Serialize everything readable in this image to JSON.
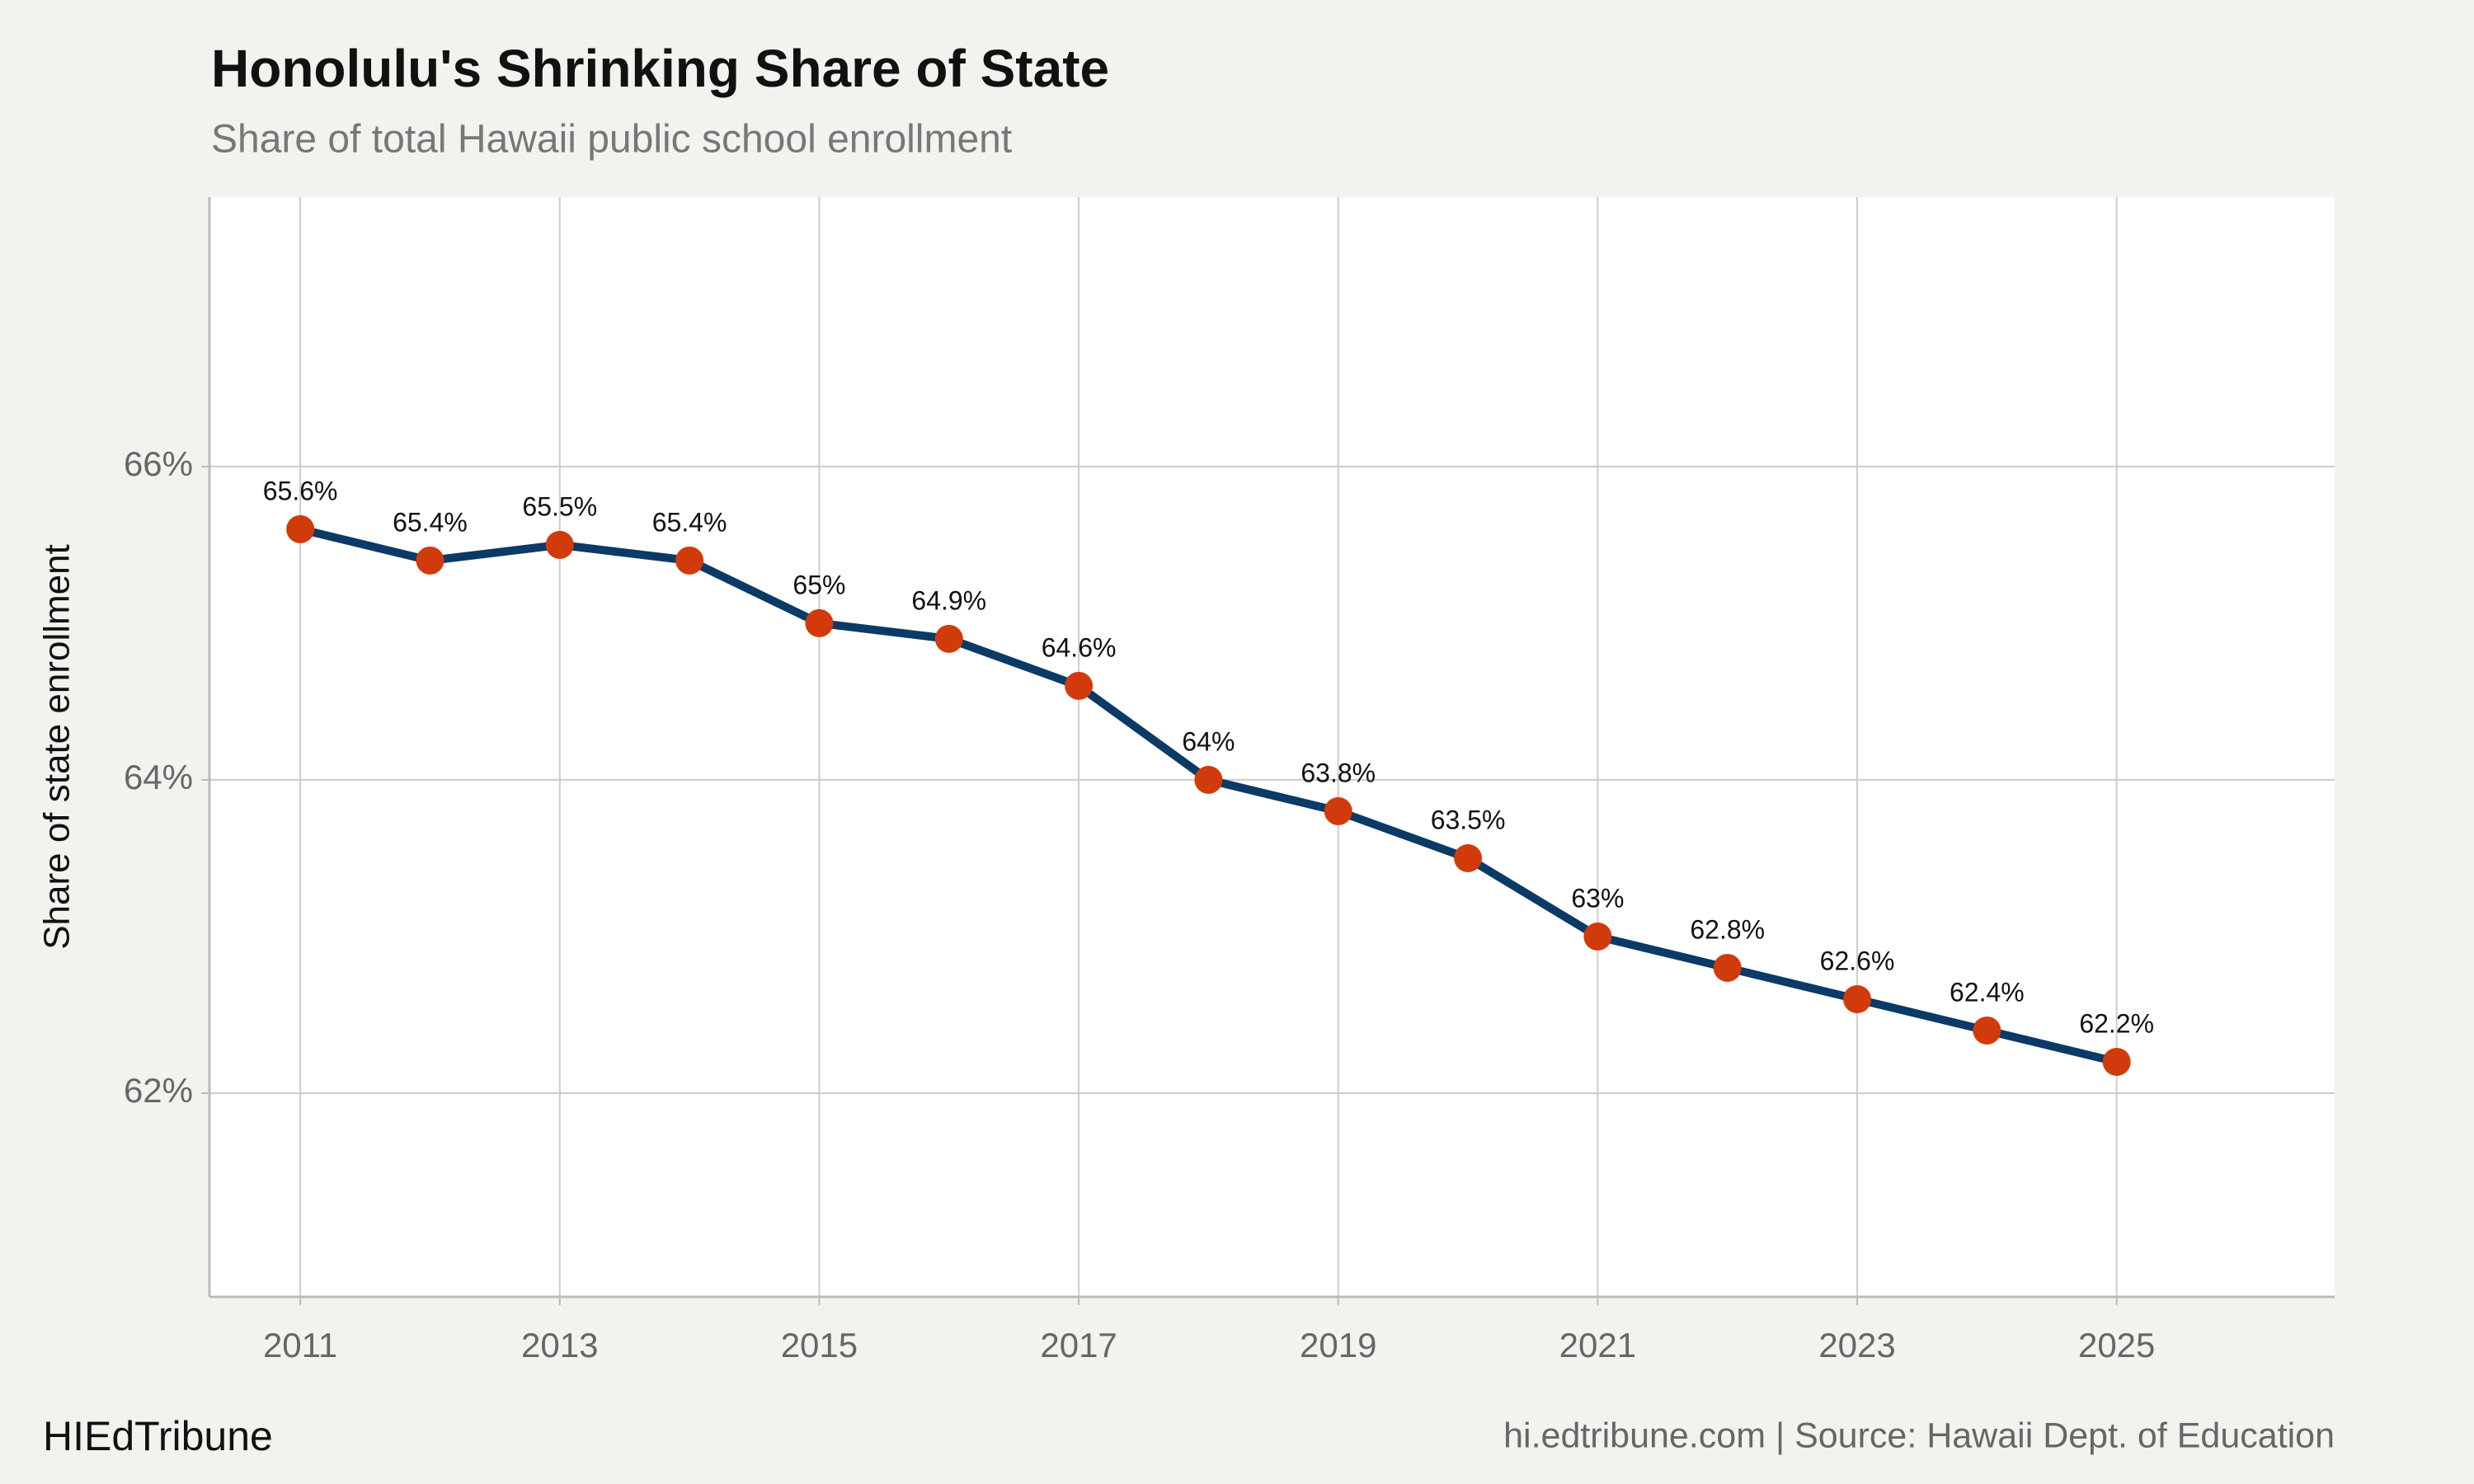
{
  "chart_data": {
    "type": "line",
    "title": "Honolulu's Shrinking Share of State",
    "subtitle": "Share of total Hawaii public school enrollment",
    "y_label": "Share of state enrollment",
    "brand": "HIEdTribune",
    "source": "hi.edtribune.com | Source: Hawaii Dept. of Education",
    "x": [
      2011,
      2012,
      2013,
      2014,
      2015,
      2016,
      2017,
      2018,
      2019,
      2020,
      2021,
      2022,
      2023,
      2024,
      2025
    ],
    "values": [
      65.6,
      65.4,
      65.5,
      65.4,
      65.0,
      64.9,
      64.6,
      64.0,
      63.8,
      63.5,
      63.0,
      62.8,
      62.6,
      62.4,
      62.2
    ],
    "value_labels": [
      "65.6%",
      "65.4%",
      "65.5%",
      "65.4%",
      "65%",
      "64.9%",
      "64.6%",
      "64%",
      "63.8%",
      "63.5%",
      "63%",
      "62.8%",
      "62.6%",
      "62.4%",
      "62.2%"
    ],
    "color": "#0b3a66",
    "marker_color": "#d13b0c",
    "xlim": [
      2010.3,
      2026.68
    ],
    "ylim": [
      60.7,
      67.72
    ],
    "xticks": [
      2011,
      2013,
      2015,
      2017,
      2019,
      2021,
      2023,
      2025
    ],
    "yticks": [
      {
        "value": 62,
        "label": "62%"
      },
      {
        "value": 64,
        "label": "64%"
      },
      {
        "value": 66,
        "label": "66%"
      }
    ],
    "grid": true
  }
}
